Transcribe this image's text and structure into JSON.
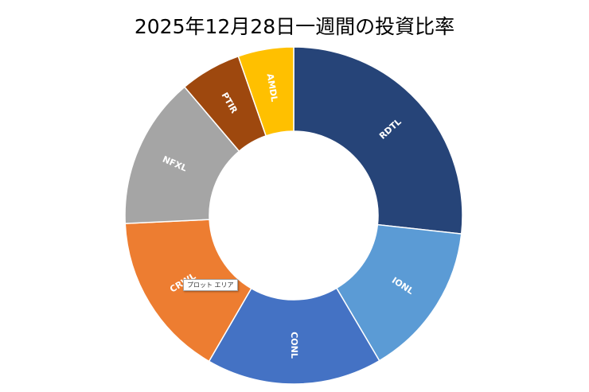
{
  "chart_data": {
    "type": "pie",
    "donut": true,
    "title": "2025年12月28日一週間の投資比率",
    "legend": "none",
    "slices": [
      {
        "label": "RDTL",
        "value": 24.6,
        "color": "#264478"
      },
      {
        "label": "IONL",
        "value": 13.6,
        "color": "#5b9bd5"
      },
      {
        "label": "CONL",
        "value": 15.5,
        "color": "#4472c4"
      },
      {
        "label": "CRWL",
        "value": 14.6,
        "color": "#ed7d31"
      },
      {
        "label": "NFXL",
        "value": 13.4,
        "color": "#a5a5a5"
      },
      {
        "label": "PTIR",
        "value": 5.4,
        "color": "#9e480e"
      },
      {
        "label": "AMDL",
        "value": 4.9,
        "color": "#ffc000"
      }
    ]
  },
  "tooltip": {
    "text": "プロット エリア"
  }
}
